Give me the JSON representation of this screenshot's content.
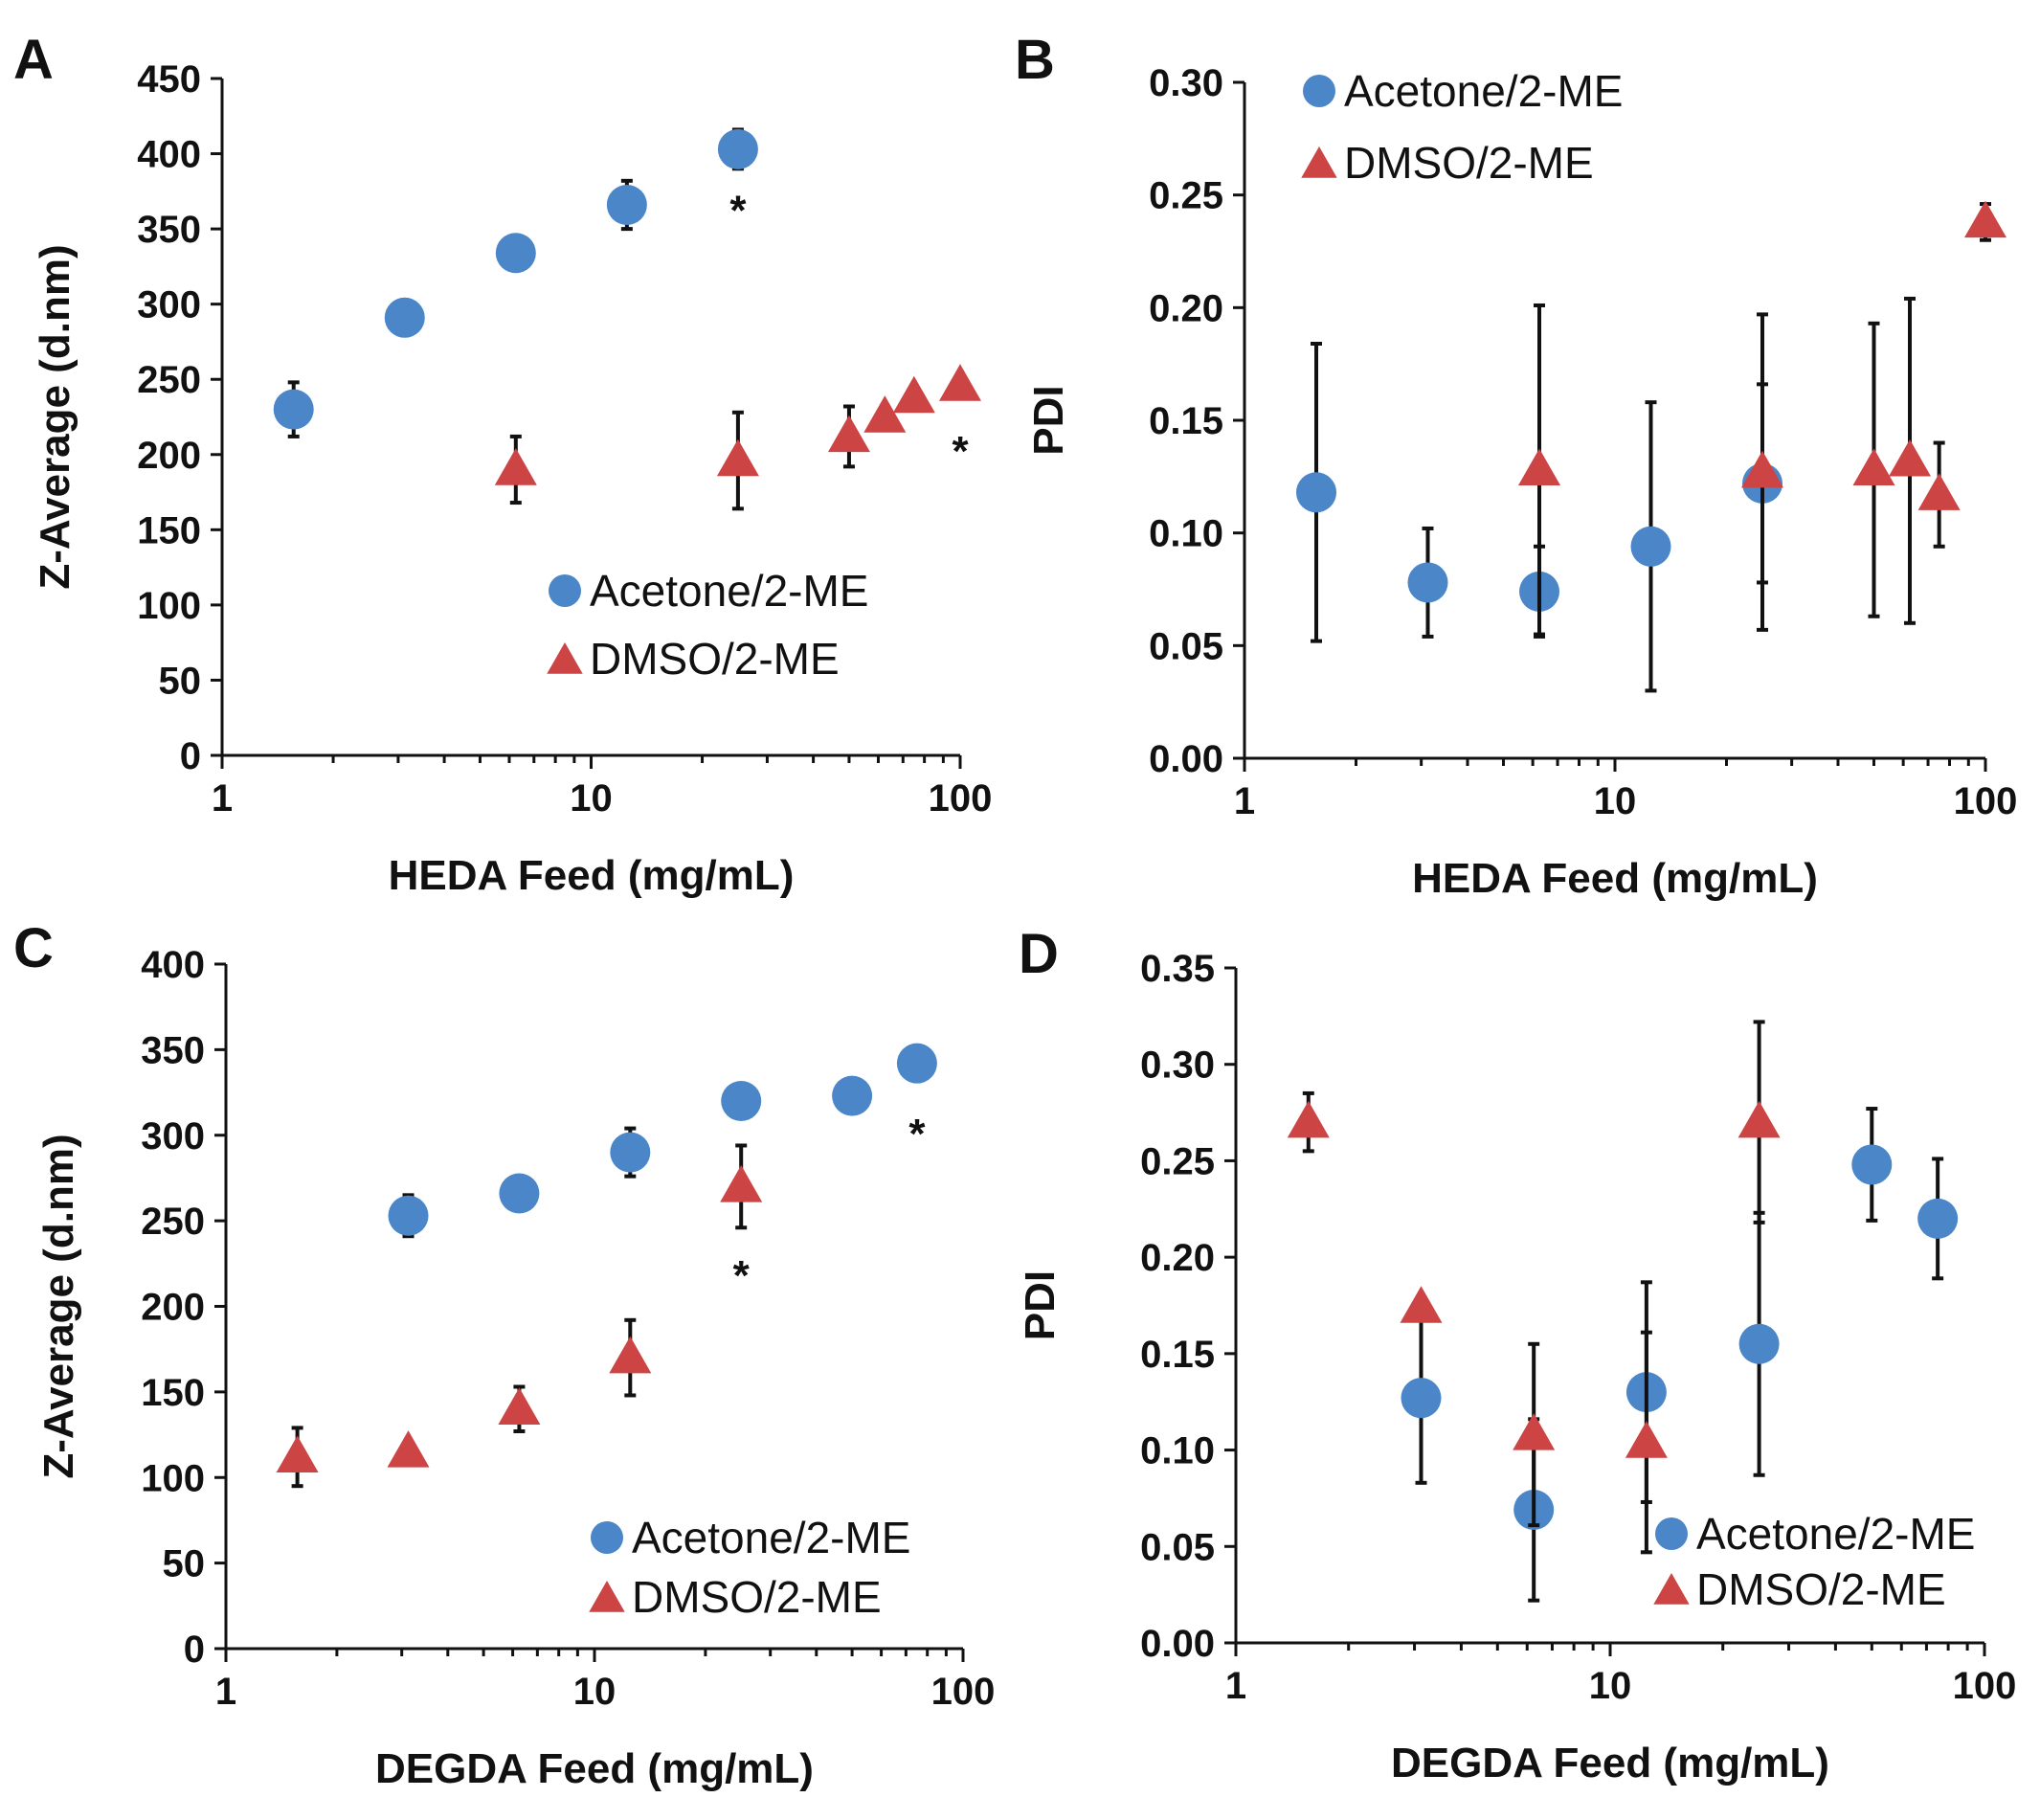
{
  "colors": {
    "acetone": "#4a86c8",
    "dmso": "#cc4444",
    "axis": "#111111"
  },
  "chart_data": [
    {
      "panel": "A",
      "type": "scatter",
      "xscale": "log",
      "xlabel": "HEDA Feed (mg/mL)",
      "ylabel": "Z-Average (d.nm)",
      "xlim": [
        1,
        100
      ],
      "ylim": [
        0,
        450
      ],
      "xticks": [
        1,
        10,
        100
      ],
      "yticks": [
        0,
        50,
        100,
        150,
        200,
        250,
        300,
        350,
        400,
        450
      ],
      "ydecimals": 0,
      "legend_position": "bottom-right",
      "series": [
        {
          "name": "Acetone/2-ME",
          "marker": "circle",
          "color": "#4a86c8",
          "x": [
            1.5625,
            3.125,
            6.25,
            12.5,
            25
          ],
          "y": [
            230,
            291,
            334,
            366,
            403
          ],
          "yerr": [
            18,
            3,
            4,
            16,
            13
          ]
        },
        {
          "name": "DMSO/2-ME",
          "marker": "triangle",
          "color": "#cc4444",
          "x": [
            6.25,
            25,
            50,
            62.5,
            75,
            100
          ],
          "y": [
            190,
            196,
            212,
            225,
            238,
            246
          ],
          "yerr": [
            22,
            32,
            20,
            3,
            3,
            3
          ]
        }
      ],
      "annotations": [
        {
          "text": "*",
          "x": 25,
          "y": 367
        },
        {
          "text": "*",
          "x": 100,
          "y": 207
        }
      ]
    },
    {
      "panel": "B",
      "type": "scatter",
      "xscale": "log",
      "xlabel": "HEDA Feed (mg/mL)",
      "ylabel": "PDI",
      "xlim": [
        1,
        100
      ],
      "ylim": [
        0,
        0.3
      ],
      "xticks": [
        1,
        10,
        100
      ],
      "yticks": [
        0,
        0.05,
        0.1,
        0.15,
        0.2,
        0.25,
        0.3
      ],
      "ydecimals": 2,
      "legend_position": "top-left",
      "series": [
        {
          "name": "Acetone/2-ME",
          "marker": "circle",
          "color": "#4a86c8",
          "x": [
            1.5625,
            3.125,
            6.25,
            12.5,
            25
          ],
          "y": [
            0.118,
            0.078,
            0.074,
            0.094,
            0.122
          ],
          "yerr": [
            0.066,
            0.024,
            0.02,
            0.064,
            0.044
          ]
        },
        {
          "name": "DMSO/2-ME",
          "marker": "triangle",
          "color": "#cc4444",
          "x": [
            6.25,
            25,
            50,
            62.5,
            75,
            100
          ],
          "y": [
            0.128,
            0.127,
            0.128,
            0.132,
            0.117,
            0.238
          ],
          "yerr": [
            0.073,
            0.07,
            0.065,
            0.072,
            0.023,
            0.008
          ]
        }
      ],
      "annotations": []
    },
    {
      "panel": "C",
      "type": "scatter",
      "xscale": "log",
      "xlabel": "DEGDA Feed (mg/mL)",
      "ylabel": "Z-Average (d.nm)",
      "xlim": [
        1,
        100
      ],
      "ylim": [
        0,
        400
      ],
      "xticks": [
        1,
        10,
        100
      ],
      "yticks": [
        0,
        50,
        100,
        150,
        200,
        250,
        300,
        350,
        400
      ],
      "ydecimals": 0,
      "legend_position": "bottom-right",
      "series": [
        {
          "name": "Acetone/2-ME",
          "marker": "circle",
          "color": "#4a86c8",
          "x": [
            3.125,
            6.25,
            12.5,
            25,
            50,
            75
          ],
          "y": [
            253,
            266,
            290,
            320,
            323,
            342
          ],
          "yerr": [
            12,
            4,
            14,
            3,
            3,
            3
          ]
        },
        {
          "name": "DMSO/2-ME",
          "marker": "triangle",
          "color": "#cc4444",
          "x": [
            1.5625,
            3.125,
            6.25,
            12.5,
            25
          ],
          "y": [
            112,
            115,
            140,
            170,
            270
          ],
          "yerr": [
            17,
            3,
            13,
            22,
            24
          ]
        }
      ],
      "annotations": [
        {
          "text": "*",
          "x": 75,
          "y": 305
        },
        {
          "text": "*",
          "x": 25,
          "y": 222
        }
      ]
    },
    {
      "panel": "D",
      "type": "scatter",
      "xscale": "log",
      "xlabel": "DEGDA Feed (mg/mL)",
      "ylabel": "PDI",
      "xlim": [
        1,
        100
      ],
      "ylim": [
        0,
        0.35
      ],
      "xticks": [
        1,
        10,
        100
      ],
      "yticks": [
        0,
        0.05,
        0.1,
        0.15,
        0.2,
        0.25,
        0.3,
        0.35
      ],
      "ydecimals": 2,
      "legend_position": "bottom-right",
      "series": [
        {
          "name": "Acetone/2-ME",
          "marker": "circle",
          "color": "#4a86c8",
          "x": [
            3.125,
            6.25,
            12.5,
            25,
            50,
            75
          ],
          "y": [
            0.127,
            0.069,
            0.13,
            0.155,
            0.248,
            0.22
          ],
          "yerr": [
            0.044,
            0.047,
            0.057,
            0.068,
            0.029,
            0.031
          ]
        },
        {
          "name": "DMSO/2-ME",
          "marker": "triangle",
          "color": "#cc4444",
          "x": [
            1.5625,
            3.125,
            6.25,
            12.5,
            25
          ],
          "y": [
            0.27,
            0.174,
            0.108,
            0.104,
            0.27
          ],
          "yerr": [
            0.015,
            0.005,
            0.047,
            0.057,
            0.052
          ]
        }
      ],
      "annotations": []
    }
  ]
}
